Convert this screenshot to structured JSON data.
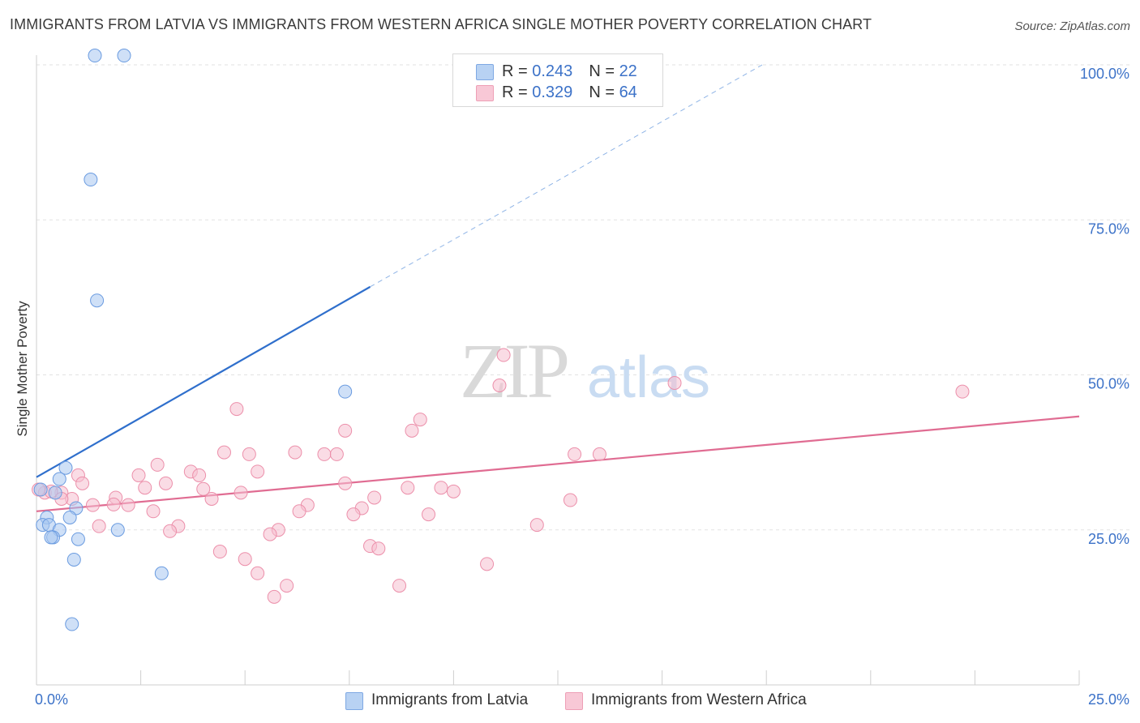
{
  "title": "IMMIGRANTS FROM LATVIA VS IMMIGRANTS FROM WESTERN AFRICA SINGLE MOTHER POVERTY CORRELATION CHART",
  "source": "Source: ZipAtlas.com",
  "watermark": {
    "zip": "ZIP",
    "atlas": "atlas"
  },
  "legend": {
    "rows": [
      {
        "r_label": "R = ",
        "r_value": "0.243",
        "n_label": "N = ",
        "n_value": "22"
      },
      {
        "r_label": "R = ",
        "r_value": "0.329",
        "n_label": "N = ",
        "n_value": "64"
      }
    ]
  },
  "chart_data": {
    "type": "scatter",
    "title": "IMMIGRANTS FROM LATVIA VS IMMIGRANTS FROM WESTERN AFRICA SINGLE MOTHER POVERTY CORRELATION CHART",
    "xlabel": "",
    "ylabel": "Single Mother Poverty",
    "xlim": [
      0,
      25
    ],
    "ylim": [
      0,
      102
    ],
    "x_tick_labels": [
      "0.0%",
      "25.0%"
    ],
    "y_ticks": [
      {
        "value": 25,
        "label": "25.0%"
      },
      {
        "value": 50,
        "label": "50.0%"
      },
      {
        "value": 75,
        "label": "75.0%"
      },
      {
        "value": 100,
        "label": "100.0%"
      }
    ],
    "grid": "horizontal dashed",
    "legend_position": "top-center and bottom",
    "series": [
      {
        "name": "Immigrants from Latvia",
        "color": "#a7c7f0",
        "stroke": "#6a9be0",
        "line_color": "#2f6fcc",
        "trend": {
          "x0": 0,
          "y0": 33.5,
          "x1": 8.0,
          "y1": 64.2,
          "dashed_to_x": 17.4,
          "dashed_to_y": 100
        },
        "points": [
          [
            1.4,
            101.5
          ],
          [
            2.1,
            101.5
          ],
          [
            1.3,
            81.5
          ],
          [
            1.45,
            62.0
          ],
          [
            7.4,
            47.3
          ],
          [
            0.7,
            35.0
          ],
          [
            0.55,
            33.2
          ],
          [
            0.45,
            31.0
          ],
          [
            0.1,
            31.5
          ],
          [
            0.95,
            28.5
          ],
          [
            0.8,
            27.0
          ],
          [
            0.25,
            27.0
          ],
          [
            0.15,
            25.8
          ],
          [
            0.3,
            25.8
          ],
          [
            0.55,
            25.0
          ],
          [
            1.95,
            25.0
          ],
          [
            0.4,
            23.8
          ],
          [
            0.35,
            23.8
          ],
          [
            1.0,
            23.5
          ],
          [
            3.0,
            18.0
          ],
          [
            0.9,
            20.2
          ],
          [
            0.85,
            9.8
          ]
        ]
      },
      {
        "name": "Immigrants from Western Africa",
        "color": "#f6c0cf",
        "stroke": "#ec8faa",
        "line_color": "#e06c92",
        "trend": {
          "x0": 0,
          "y0": 28.0,
          "x1": 25,
          "y1": 43.3
        },
        "points": [
          [
            11.2,
            53.2
          ],
          [
            11.1,
            48.3
          ],
          [
            15.3,
            48.7
          ],
          [
            22.2,
            47.3
          ],
          [
            4.8,
            44.5
          ],
          [
            9.2,
            42.8
          ],
          [
            9.0,
            41.0
          ],
          [
            7.4,
            41.0
          ],
          [
            6.2,
            37.5
          ],
          [
            4.5,
            37.5
          ],
          [
            5.1,
            37.2
          ],
          [
            6.9,
            37.2
          ],
          [
            7.2,
            37.2
          ],
          [
            12.9,
            37.2
          ],
          [
            13.5,
            37.2
          ],
          [
            2.9,
            35.5
          ],
          [
            3.7,
            34.4
          ],
          [
            5.3,
            34.4
          ],
          [
            2.45,
            33.8
          ],
          [
            3.9,
            33.8
          ],
          [
            1.0,
            33.8
          ],
          [
            3.1,
            32.5
          ],
          [
            7.4,
            32.5
          ],
          [
            1.1,
            32.5
          ],
          [
            9.7,
            31.8
          ],
          [
            2.6,
            31.8
          ],
          [
            8.9,
            31.8
          ],
          [
            4.0,
            31.6
          ],
          [
            10.0,
            31.2
          ],
          [
            0.6,
            31.0
          ],
          [
            0.2,
            31.0
          ],
          [
            0.35,
            31.2
          ],
          [
            4.9,
            31.0
          ],
          [
            8.1,
            30.2
          ],
          [
            1.9,
            30.2
          ],
          [
            0.85,
            30.0
          ],
          [
            0.6,
            30.0
          ],
          [
            4.2,
            30.0
          ],
          [
            12.8,
            29.8
          ],
          [
            1.85,
            29.1
          ],
          [
            1.35,
            29.0
          ],
          [
            2.2,
            29.0
          ],
          [
            6.5,
            29.0
          ],
          [
            7.8,
            28.5
          ],
          [
            2.8,
            28.0
          ],
          [
            6.3,
            28.0
          ],
          [
            9.4,
            27.5
          ],
          [
            7.6,
            27.5
          ],
          [
            1.5,
            25.6
          ],
          [
            3.4,
            25.6
          ],
          [
            3.2,
            24.8
          ],
          [
            5.8,
            25.0
          ],
          [
            12.0,
            25.8
          ],
          [
            5.6,
            24.3
          ],
          [
            8.0,
            22.4
          ],
          [
            8.2,
            22.0
          ],
          [
            4.4,
            21.5
          ],
          [
            5.0,
            20.3
          ],
          [
            10.8,
            19.5
          ],
          [
            5.3,
            18.0
          ],
          [
            6.0,
            16.0
          ],
          [
            8.7,
            16.0
          ],
          [
            5.7,
            14.2
          ],
          [
            0.05,
            31.5
          ]
        ]
      }
    ]
  }
}
